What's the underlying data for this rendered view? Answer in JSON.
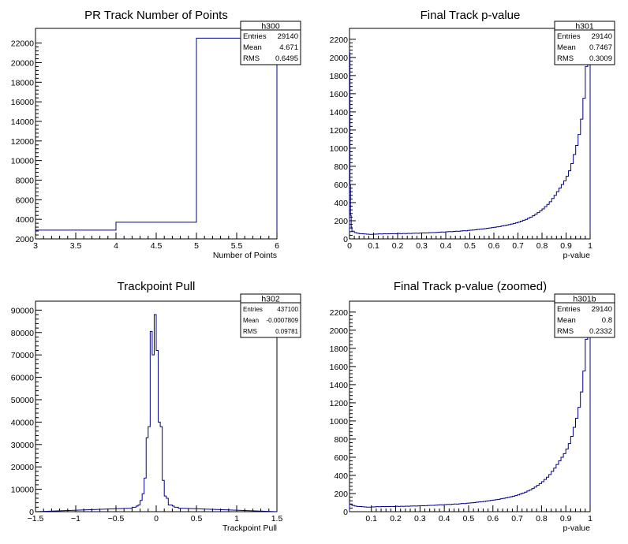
{
  "charts": [
    {
      "title": "PR Track Number of Points",
      "xlabel": "Number of Points",
      "stats": {
        "name": "h300",
        "rows": [
          [
            "Entries",
            "29140"
          ],
          [
            "Mean",
            "4.671"
          ],
          [
            "RMS",
            "0.6495"
          ]
        ]
      },
      "xticks_major": [
        {
          "v": 3,
          "label": "3"
        },
        {
          "v": 3.5,
          "label": "3.5"
        },
        {
          "v": 4,
          "label": "4"
        },
        {
          "v": 4.5,
          "label": "4.5"
        },
        {
          "v": 5,
          "label": "5"
        },
        {
          "v": 5.5,
          "label": "5.5"
        },
        {
          "v": 6,
          "label": "6"
        }
      ],
      "yticks_major": [
        {
          "v": 2000,
          "label": "2000"
        },
        {
          "v": 4000,
          "label": "4000"
        },
        {
          "v": 6000,
          "label": "6000"
        },
        {
          "v": 8000,
          "label": "8000"
        },
        {
          "v": 10000,
          "label": "10000"
        },
        {
          "v": 12000,
          "label": "12000"
        },
        {
          "v": 14000,
          "label": "14000"
        },
        {
          "v": 16000,
          "label": "16000"
        },
        {
          "v": 18000,
          "label": "18000"
        },
        {
          "v": 20000,
          "label": "20000"
        },
        {
          "v": 22000,
          "label": "22000"
        }
      ]
    },
    {
      "title": "Final Track p-value",
      "xlabel": "p-value",
      "stats": {
        "name": "h301",
        "rows": [
          [
            "Entries",
            "29140"
          ],
          [
            "Mean",
            "0.7467"
          ],
          [
            "RMS",
            "0.3009"
          ]
        ]
      },
      "xticks_major": [
        {
          "v": 0,
          "label": "0"
        },
        {
          "v": 0.1,
          "label": "0.1"
        },
        {
          "v": 0.2,
          "label": "0.2"
        },
        {
          "v": 0.3,
          "label": "0.3"
        },
        {
          "v": 0.4,
          "label": "0.4"
        },
        {
          "v": 0.5,
          "label": "0.5"
        },
        {
          "v": 0.6,
          "label": "0.6"
        },
        {
          "v": 0.7,
          "label": "0.7"
        },
        {
          "v": 0.8,
          "label": "0.8"
        },
        {
          "v": 0.9,
          "label": "0.9"
        },
        {
          "v": 1,
          "label": "1"
        }
      ],
      "yticks_major": [
        {
          "v": 0,
          "label": "0"
        },
        {
          "v": 200,
          "label": "200"
        },
        {
          "v": 400,
          "label": "400"
        },
        {
          "v": 600,
          "label": "600"
        },
        {
          "v": 800,
          "label": "800"
        },
        {
          "v": 1000,
          "label": "1000"
        },
        {
          "v": 1200,
          "label": "1200"
        },
        {
          "v": 1400,
          "label": "1400"
        },
        {
          "v": 1600,
          "label": "1600"
        },
        {
          "v": 1800,
          "label": "1800"
        },
        {
          "v": 2000,
          "label": "2000"
        },
        {
          "v": 2200,
          "label": "2200"
        }
      ]
    },
    {
      "title": "Trackpoint Pull",
      "xlabel": "Trackpoint Pull",
      "stats": {
        "name": "h302",
        "rows": [
          [
            "Entries",
            "437100"
          ],
          [
            "Mean",
            "-0.0007809"
          ],
          [
            "RMS",
            "0.09781"
          ]
        ]
      },
      "xticks_major": [
        {
          "v": -1.5,
          "label": "−1.5"
        },
        {
          "v": -1,
          "label": "−1"
        },
        {
          "v": -0.5,
          "label": "−0.5"
        },
        {
          "v": 0,
          "label": "0"
        },
        {
          "v": 0.5,
          "label": "0.5"
        },
        {
          "v": 1,
          "label": "1"
        },
        {
          "v": 1.5,
          "label": "1.5"
        }
      ],
      "yticks_major": [
        {
          "v": 0,
          "label": "0"
        },
        {
          "v": 10000,
          "label": "10000"
        },
        {
          "v": 20000,
          "label": "20000"
        },
        {
          "v": 30000,
          "label": "30000"
        },
        {
          "v": 40000,
          "label": "40000"
        },
        {
          "v": 50000,
          "label": "50000"
        },
        {
          "v": 60000,
          "label": "60000"
        },
        {
          "v": 70000,
          "label": "70000"
        },
        {
          "v": 80000,
          "label": "80000"
        },
        {
          "v": 90000,
          "label": "90000"
        }
      ]
    },
    {
      "title": "Final Track p-value (zoomed)",
      "xlabel": "p-value",
      "stats": {
        "name": "h301b",
        "rows": [
          [
            "Entries",
            "29140"
          ],
          [
            "Mean",
            "0.8"
          ],
          [
            "RMS",
            "0.2332"
          ]
        ]
      },
      "xticks_major": [
        {
          "v": 0.1,
          "label": "0.1"
        },
        {
          "v": 0.2,
          "label": "0.2"
        },
        {
          "v": 0.3,
          "label": "0.3"
        },
        {
          "v": 0.4,
          "label": "0.4"
        },
        {
          "v": 0.5,
          "label": "0.5"
        },
        {
          "v": 0.6,
          "label": "0.6"
        },
        {
          "v": 0.7,
          "label": "0.7"
        },
        {
          "v": 0.8,
          "label": "0.8"
        },
        {
          "v": 0.9,
          "label": "0.9"
        },
        {
          "v": 1,
          "label": "1"
        }
      ],
      "yticks_major": [
        {
          "v": 0,
          "label": "0"
        },
        {
          "v": 200,
          "label": "200"
        },
        {
          "v": 400,
          "label": "400"
        },
        {
          "v": 600,
          "label": "600"
        },
        {
          "v": 800,
          "label": "800"
        },
        {
          "v": 1000,
          "label": "1000"
        },
        {
          "v": 1200,
          "label": "1200"
        },
        {
          "v": 1400,
          "label": "1400"
        },
        {
          "v": 1600,
          "label": "1600"
        },
        {
          "v": 1800,
          "label": "1800"
        },
        {
          "v": 2000,
          "label": "2000"
        },
        {
          "v": 2200,
          "label": "2200"
        }
      ]
    }
  ],
  "chart_data": [
    {
      "type": "step-histogram",
      "xlim": [
        3,
        6
      ],
      "ylim": [
        2000,
        23500
      ],
      "color": "#00008b",
      "bin_edges": [
        3,
        4,
        5,
        6
      ],
      "counts": [
        2900,
        3700,
        22500
      ]
    },
    {
      "type": "step-histogram",
      "xlim": [
        0,
        1
      ],
      "ylim": [
        0,
        2320
      ],
      "color": "#00008b",
      "bin_width": 0.01,
      "extra_low_bins": [
        {
          "x0": 0.0,
          "x1": 0.002,
          "y": 2050
        },
        {
          "x0": 0.002,
          "x1": 0.004,
          "y": 600
        },
        {
          "x0": 0.004,
          "x1": 0.007,
          "y": 260
        },
        {
          "x0": 0.007,
          "x1": 0.01,
          "y": 130
        }
      ],
      "counts": [
        85,
        70,
        62,
        58,
        56,
        54,
        52,
        50,
        50,
        52,
        53,
        55,
        54,
        56,
        55,
        57,
        56,
        58,
        57,
        60,
        58,
        60,
        59,
        61,
        60,
        62,
        63,
        62,
        64,
        66,
        65,
        66,
        68,
        70,
        69,
        72,
        74,
        76,
        75,
        78,
        80,
        79,
        83,
        85,
        84,
        87,
        90,
        89,
        93,
        96,
        98,
        100,
        104,
        108,
        110,
        113,
        117,
        121,
        125,
        128,
        133,
        136,
        142,
        147,
        152,
        158,
        164,
        170,
        177,
        185,
        195,
        205,
        215,
        228,
        240,
        255,
        272,
        290,
        310,
        330,
        355,
        380,
        410,
        445,
        480,
        520,
        560,
        600,
        640,
        690,
        750,
        830,
        930,
        1030,
        1150,
        1320,
        1550,
        1900,
        1950,
        1980
      ]
    },
    {
      "type": "step-histogram",
      "xlim": [
        -1.5,
        1.5
      ],
      "ylim": [
        0,
        94000
      ],
      "color": "#00008b",
      "bin_width": 0.025,
      "tail_x": [
        -1.5,
        -0.35,
        0.35,
        1.5
      ],
      "tail_y": [
        0,
        1500,
        1500,
        0
      ],
      "core_bins": [
        {
          "x": -0.35,
          "y": 1500
        },
        {
          "x": -0.325,
          "y": 1500
        },
        {
          "x": -0.3,
          "y": 2000
        },
        {
          "x": -0.275,
          "y": 2000
        },
        {
          "x": -0.25,
          "y": 2500
        },
        {
          "x": -0.225,
          "y": 3000
        },
        {
          "x": -0.2,
          "y": 5000
        },
        {
          "x": -0.175,
          "y": 8000
        },
        {
          "x": -0.15,
          "y": 15000
        },
        {
          "x": -0.125,
          "y": 33000
        },
        {
          "x": -0.1,
          "y": 38000
        },
        {
          "x": -0.075,
          "y": 80500
        },
        {
          "x": -0.05,
          "y": 70000
        },
        {
          "x": -0.025,
          "y": 88000
        },
        {
          "x": 0.0,
          "y": 72000
        },
        {
          "x": 0.025,
          "y": 40000
        },
        {
          "x": 0.05,
          "y": 38000
        },
        {
          "x": 0.075,
          "y": 14000
        },
        {
          "x": 0.1,
          "y": 7000
        },
        {
          "x": 0.125,
          "y": 6000
        },
        {
          "x": 0.15,
          "y": 3000
        },
        {
          "x": 0.175,
          "y": 3000
        },
        {
          "x": 0.2,
          "y": 2500
        },
        {
          "x": 0.225,
          "y": 2000
        },
        {
          "x": 0.25,
          "y": 2000
        },
        {
          "x": 0.275,
          "y": 1500
        },
        {
          "x": 0.3,
          "y": 1500
        },
        {
          "x": 0.325,
          "y": 1500
        }
      ]
    },
    {
      "type": "step-histogram",
      "xlim": [
        0.01,
        1
      ],
      "ylim": [
        0,
        2320
      ],
      "color": "#00008b",
      "bin_width": 0.01,
      "counts": [
        85,
        70,
        62,
        58,
        56,
        54,
        52,
        50,
        50,
        52,
        53,
        55,
        54,
        56,
        55,
        57,
        56,
        58,
        57,
        60,
        58,
        60,
        59,
        61,
        60,
        62,
        63,
        62,
        64,
        66,
        65,
        66,
        68,
        70,
        69,
        72,
        74,
        76,
        75,
        78,
        80,
        79,
        83,
        85,
        84,
        87,
        90,
        89,
        93,
        96,
        98,
        100,
        104,
        108,
        110,
        113,
        117,
        121,
        125,
        128,
        133,
        136,
        142,
        147,
        152,
        158,
        164,
        170,
        177,
        185,
        195,
        205,
        215,
        228,
        240,
        255,
        272,
        290,
        310,
        330,
        355,
        380,
        410,
        445,
        480,
        520,
        560,
        600,
        640,
        690,
        750,
        830,
        930,
        1030,
        1150,
        1320,
        1550,
        1900,
        1980
      ]
    }
  ]
}
